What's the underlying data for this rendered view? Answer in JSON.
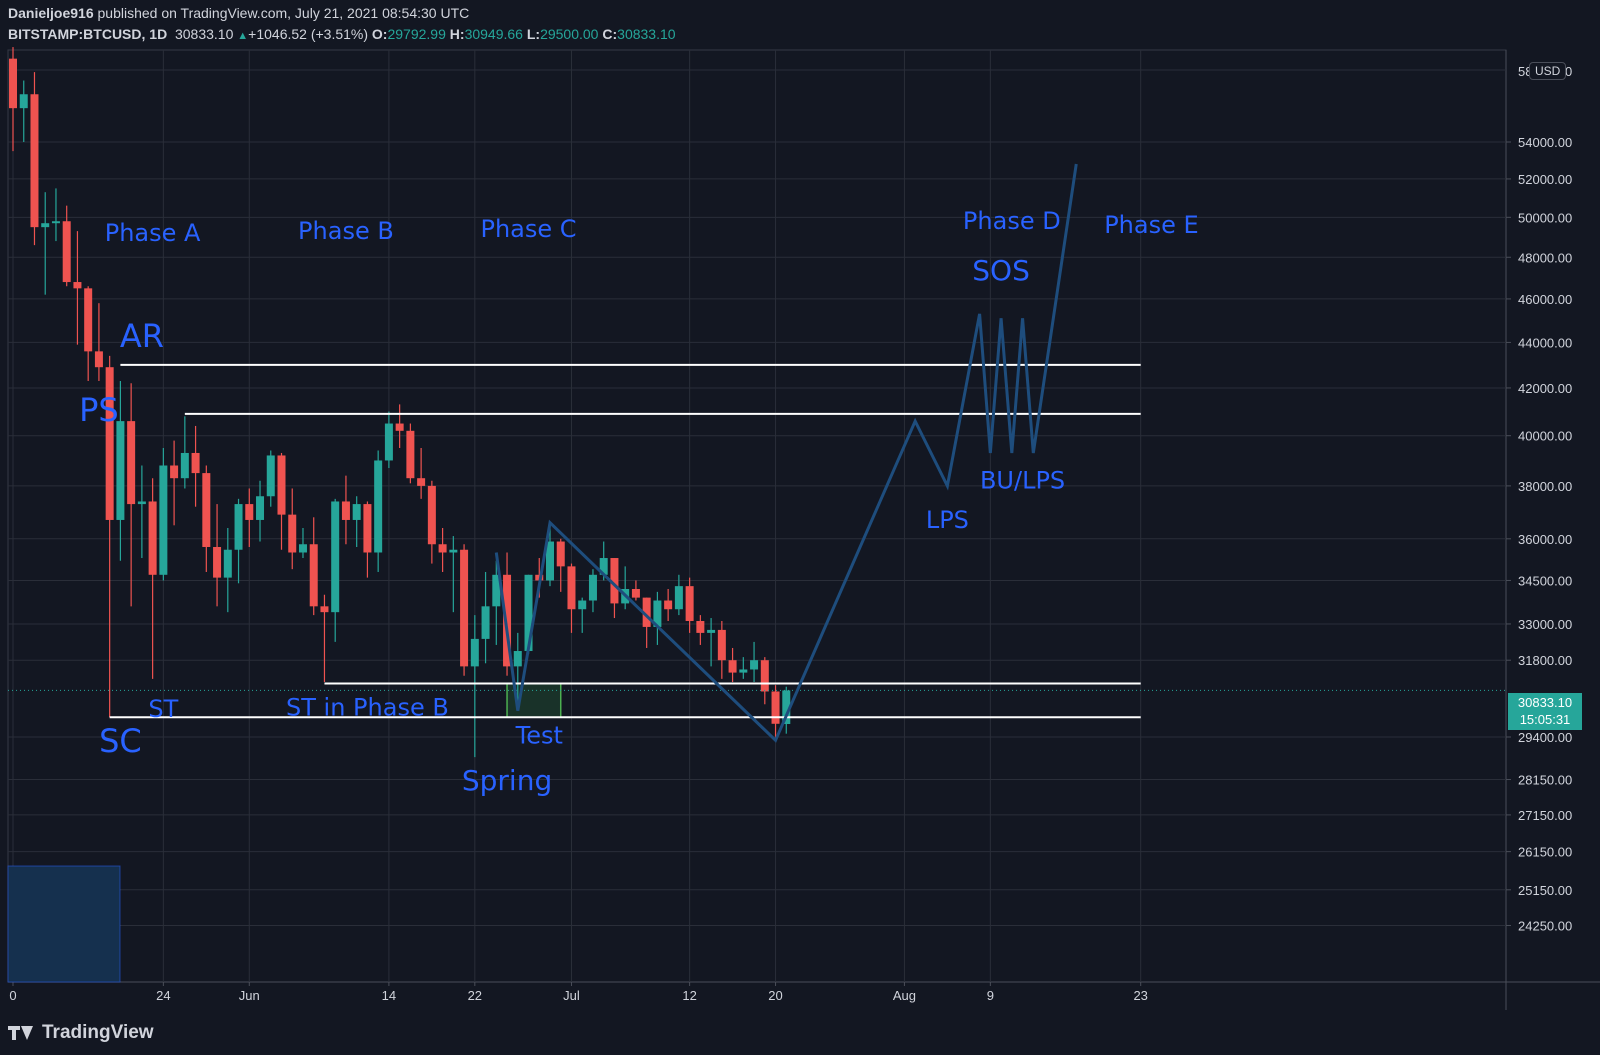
{
  "header": {
    "author": "Danieljoe916",
    "published": " published on TradingView.com, July 21, 2021 08:54:30 UTC",
    "symbol": "BITSTAMP:BTCUSD, 1D",
    "last": "30833.10",
    "change": "+1046.52 (+3.51%)",
    "o_label": "O:",
    "o_val": "29792.99",
    "h_label": "H:",
    "h_val": "30949.66",
    "l_label": "L:",
    "l_val": "29500.00",
    "c_label": "C:",
    "c_val": "30833.10"
  },
  "currency_badge": "USD",
  "last_price_tag": {
    "price": "30833.10",
    "countdown": "15:05:31"
  },
  "footer": {
    "brand": "TradingView"
  },
  "colors": {
    "up": "#26a69a",
    "down": "#ef5350",
    "annotation": "#2962ff",
    "path": "#1e4d7d",
    "level": "#ffffff"
  },
  "chart_data": {
    "type": "candlestick",
    "y_scale": "log",
    "y_ticks": [
      "54000.00",
      "52000.00",
      "50000.00",
      "48000.00",
      "46000.00",
      "44000.00",
      "42000.00",
      "40000.00",
      "38000.00",
      "36000.00",
      "34500.00",
      "33000.00",
      "31800.00",
      "29400.00",
      "28150.00",
      "27150.00",
      "26150.00",
      "25150.00",
      "24250.00"
    ],
    "y_tick_values": [
      54000,
      52000,
      50000,
      48000,
      46000,
      44000,
      42000,
      40000,
      38000,
      36000,
      34500,
      33000,
      31800,
      29400,
      28150,
      27150,
      26150,
      25150,
      24250
    ],
    "y_partial_tick": "58000.00",
    "x_ticks": [
      {
        "label": "0",
        "date": "2021-05-10"
      },
      {
        "label": "24",
        "date": "2021-05-24"
      },
      {
        "label": "Jun",
        "date": "2021-06-01"
      },
      {
        "label": "14",
        "date": "2021-06-14"
      },
      {
        "label": "22",
        "date": "2021-06-22"
      },
      {
        "label": "Jul",
        "date": "2021-07-01"
      },
      {
        "label": "12",
        "date": "2021-07-12"
      },
      {
        "label": "20",
        "date": "2021-07-20"
      },
      {
        "label": "Aug",
        "date": "2021-08-01"
      },
      {
        "label": "9",
        "date": "2021-08-09"
      },
      {
        "label": "23",
        "date": "2021-08-23"
      }
    ],
    "candles": [
      {
        "date": "2021-05-10",
        "o": 58800,
        "h": 59500,
        "l": 53500,
        "c": 55900
      },
      {
        "date": "2021-05-11",
        "o": 55900,
        "h": 57500,
        "l": 54000,
        "c": 56700
      },
      {
        "date": "2021-05-12",
        "o": 56700,
        "h": 58000,
        "l": 48600,
        "c": 49500
      },
      {
        "date": "2021-05-13",
        "o": 49500,
        "h": 51300,
        "l": 46200,
        "c": 49700
      },
      {
        "date": "2021-05-14",
        "o": 49700,
        "h": 51500,
        "l": 48800,
        "c": 49800
      },
      {
        "date": "2021-05-15",
        "o": 49800,
        "h": 50600,
        "l": 46600,
        "c": 46800
      },
      {
        "date": "2021-05-16",
        "o": 46800,
        "h": 49300,
        "l": 43900,
        "c": 46500
      },
      {
        "date": "2021-05-17",
        "o": 46500,
        "h": 46600,
        "l": 42300,
        "c": 43600
      },
      {
        "date": "2021-05-18",
        "o": 43600,
        "h": 45800,
        "l": 42300,
        "c": 42900
      },
      {
        "date": "2021-05-19",
        "o": 42900,
        "h": 43400,
        "l": 30000,
        "c": 36700
      },
      {
        "date": "2021-05-20",
        "o": 36700,
        "h": 42300,
        "l": 35200,
        "c": 40600
      },
      {
        "date": "2021-05-21",
        "o": 40600,
        "h": 42200,
        "l": 33600,
        "c": 37300
      },
      {
        "date": "2021-05-22",
        "o": 37300,
        "h": 38800,
        "l": 35300,
        "c": 37400
      },
      {
        "date": "2021-05-23",
        "o": 37400,
        "h": 38300,
        "l": 31200,
        "c": 34700
      },
      {
        "date": "2021-05-24",
        "o": 34700,
        "h": 39500,
        "l": 34500,
        "c": 38800
      },
      {
        "date": "2021-05-25",
        "o": 38800,
        "h": 39800,
        "l": 36500,
        "c": 38300
      },
      {
        "date": "2021-05-26",
        "o": 38300,
        "h": 40800,
        "l": 37900,
        "c": 39300
      },
      {
        "date": "2021-05-27",
        "o": 39300,
        "h": 40400,
        "l": 37200,
        "c": 38500
      },
      {
        "date": "2021-05-28",
        "o": 38500,
        "h": 38800,
        "l": 34800,
        "c": 35700
      },
      {
        "date": "2021-05-29",
        "o": 35700,
        "h": 37300,
        "l": 33600,
        "c": 34600
      },
      {
        "date": "2021-05-30",
        "o": 34600,
        "h": 36400,
        "l": 33400,
        "c": 35600
      },
      {
        "date": "2021-05-31",
        "o": 35600,
        "h": 37500,
        "l": 34400,
        "c": 37300
      },
      {
        "date": "2021-06-01",
        "o": 37300,
        "h": 37900,
        "l": 35700,
        "c": 36700
      },
      {
        "date": "2021-06-02",
        "o": 36700,
        "h": 38200,
        "l": 35900,
        "c": 37600
      },
      {
        "date": "2021-06-03",
        "o": 37600,
        "h": 39400,
        "l": 37200,
        "c": 39200
      },
      {
        "date": "2021-06-04",
        "o": 39200,
        "h": 39300,
        "l": 35600,
        "c": 36900
      },
      {
        "date": "2021-06-05",
        "o": 36900,
        "h": 37900,
        "l": 34900,
        "c": 35500
      },
      {
        "date": "2021-06-06",
        "o": 35500,
        "h": 36400,
        "l": 35300,
        "c": 35800
      },
      {
        "date": "2021-06-07",
        "o": 35800,
        "h": 36800,
        "l": 33300,
        "c": 33600
      },
      {
        "date": "2021-06-08",
        "o": 33600,
        "h": 34000,
        "l": 31100,
        "c": 33400
      },
      {
        "date": "2021-06-09",
        "o": 33400,
        "h": 37500,
        "l": 32400,
        "c": 37400
      },
      {
        "date": "2021-06-10",
        "o": 37400,
        "h": 38400,
        "l": 35800,
        "c": 36700
      },
      {
        "date": "2021-06-11",
        "o": 36700,
        "h": 37600,
        "l": 35700,
        "c": 37300
      },
      {
        "date": "2021-06-12",
        "o": 37300,
        "h": 37400,
        "l": 34600,
        "c": 35500
      },
      {
        "date": "2021-06-13",
        "o": 35500,
        "h": 39400,
        "l": 34800,
        "c": 39000
      },
      {
        "date": "2021-06-14",
        "o": 39000,
        "h": 41000,
        "l": 38700,
        "c": 40500
      },
      {
        "date": "2021-06-15",
        "o": 40500,
        "h": 41300,
        "l": 39500,
        "c": 40200
      },
      {
        "date": "2021-06-16",
        "o": 40200,
        "h": 40500,
        "l": 38100,
        "c": 38300
      },
      {
        "date": "2021-06-17",
        "o": 38300,
        "h": 39500,
        "l": 37500,
        "c": 38000
      },
      {
        "date": "2021-06-18",
        "o": 38000,
        "h": 38200,
        "l": 35100,
        "c": 35800
      },
      {
        "date": "2021-06-19",
        "o": 35800,
        "h": 36400,
        "l": 34800,
        "c": 35500
      },
      {
        "date": "2021-06-20",
        "o": 35500,
        "h": 36100,
        "l": 33400,
        "c": 35600
      },
      {
        "date": "2021-06-21",
        "o": 35600,
        "h": 35800,
        "l": 31300,
        "c": 31600
      },
      {
        "date": "2021-06-22",
        "o": 31600,
        "h": 33300,
        "l": 28800,
        "c": 32500
      },
      {
        "date": "2021-06-23",
        "o": 32500,
        "h": 34800,
        "l": 31700,
        "c": 33600
      },
      {
        "date": "2021-06-24",
        "o": 33600,
        "h": 35200,
        "l": 32300,
        "c": 34700
      },
      {
        "date": "2021-06-25",
        "o": 34700,
        "h": 35500,
        "l": 31300,
        "c": 31600
      },
      {
        "date": "2021-06-26",
        "o": 31600,
        "h": 32700,
        "l": 30200,
        "c": 32100
      },
      {
        "date": "2021-06-27",
        "o": 32100,
        "h": 34700,
        "l": 32000,
        "c": 34700
      },
      {
        "date": "2021-06-28",
        "o": 34700,
        "h": 35300,
        "l": 33900,
        "c": 34500
      },
      {
        "date": "2021-06-29",
        "o": 34500,
        "h": 36600,
        "l": 34300,
        "c": 35900
      },
      {
        "date": "2021-06-30",
        "o": 35900,
        "h": 36000,
        "l": 34100,
        "c": 35000
      },
      {
        "date": "2021-07-01",
        "o": 35000,
        "h": 35100,
        "l": 32700,
        "c": 33500
      },
      {
        "date": "2021-07-02",
        "o": 33500,
        "h": 33900,
        "l": 32700,
        "c": 33800
      },
      {
        "date": "2021-07-03",
        "o": 33800,
        "h": 34900,
        "l": 33400,
        "c": 34700
      },
      {
        "date": "2021-07-04",
        "o": 34700,
        "h": 35900,
        "l": 34500,
        "c": 35300
      },
      {
        "date": "2021-07-05",
        "o": 35300,
        "h": 35300,
        "l": 33200,
        "c": 33700
      },
      {
        "date": "2021-07-06",
        "o": 33700,
        "h": 35000,
        "l": 33500,
        "c": 34200
      },
      {
        "date": "2021-07-07",
        "o": 34200,
        "h": 34500,
        "l": 33800,
        "c": 33900
      },
      {
        "date": "2021-07-08",
        "o": 33900,
        "h": 33900,
        "l": 32200,
        "c": 32900
      },
      {
        "date": "2021-07-09",
        "o": 32900,
        "h": 34100,
        "l": 32300,
        "c": 33800
      },
      {
        "date": "2021-07-10",
        "o": 33800,
        "h": 34200,
        "l": 33100,
        "c": 33500
      },
      {
        "date": "2021-07-11",
        "o": 33500,
        "h": 34700,
        "l": 33300,
        "c": 34300
      },
      {
        "date": "2021-07-12",
        "o": 34300,
        "h": 34600,
        "l": 32700,
        "c": 33100
      },
      {
        "date": "2021-07-13",
        "o": 33100,
        "h": 33300,
        "l": 32300,
        "c": 32700
      },
      {
        "date": "2021-07-14",
        "o": 32700,
        "h": 33200,
        "l": 31600,
        "c": 32800
      },
      {
        "date": "2021-07-15",
        "o": 32800,
        "h": 33100,
        "l": 31200,
        "c": 31800
      },
      {
        "date": "2021-07-16",
        "o": 31800,
        "h": 32200,
        "l": 31100,
        "c": 31400
      },
      {
        "date": "2021-07-17",
        "o": 31400,
        "h": 31900,
        "l": 31200,
        "c": 31500
      },
      {
        "date": "2021-07-18",
        "o": 31500,
        "h": 32400,
        "l": 31100,
        "c": 31800
      },
      {
        "date": "2021-07-19",
        "o": 31800,
        "h": 31900,
        "l": 30400,
        "c": 30800
      },
      {
        "date": "2021-07-20",
        "o": 30800,
        "h": 31000,
        "l": 29300,
        "c": 29800
      },
      {
        "date": "2021-07-21",
        "o": 29793,
        "h": 30950,
        "l": 29500,
        "c": 30833
      }
    ],
    "levels": [
      {
        "from": "2021-05-20",
        "to": "2021-08-23",
        "price": 43000
      },
      {
        "from": "2021-05-26",
        "to": "2021-08-23",
        "price": 40900
      },
      {
        "from": "2021-06-08",
        "to": "2021-08-23",
        "price": 31050
      },
      {
        "from": "2021-05-19",
        "to": "2021-08-23",
        "price": 30000
      }
    ],
    "projection_path": [
      {
        "date": "2021-06-24",
        "price": 35500
      },
      {
        "date": "2021-06-26",
        "price": 30200
      },
      {
        "date": "2021-06-29",
        "price": 36600
      },
      {
        "date": "2021-07-20",
        "price": 29300
      },
      {
        "date": "2021-08-02",
        "price": 40600
      },
      {
        "date": "2021-08-05",
        "price": 38000
      },
      {
        "date": "2021-08-08",
        "price": 45300
      },
      {
        "date": "2021-08-09",
        "price": 39300
      },
      {
        "date": "2021-08-10",
        "price": 45100
      },
      {
        "date": "2021-08-11",
        "price": 39300
      },
      {
        "date": "2021-08-12",
        "price": 45100
      },
      {
        "date": "2021-08-13",
        "price": 39300
      },
      {
        "date": "2021-08-17",
        "price": 52800
      }
    ],
    "spring_box": {
      "from": "2021-06-25",
      "to": "2021-06-30",
      "top": 31050,
      "bottom": 30000
    },
    "annotations": [
      {
        "text": "Phase A",
        "date": "2021-05-23",
        "price": 48800,
        "size": 24
      },
      {
        "text": "Phase B",
        "date": "2021-06-10",
        "price": 48900,
        "size": 24
      },
      {
        "text": "Phase C",
        "date": "2021-06-27",
        "price": 49000,
        "size": 24
      },
      {
        "text": "Phase D",
        "date": "2021-08-11",
        "price": 49400,
        "size": 24
      },
      {
        "text": "Phase E",
        "date": "2021-08-24",
        "price": 49200,
        "size": 24
      },
      {
        "text": "SOS",
        "date": "2021-08-10",
        "price": 46900,
        "size": 28
      },
      {
        "text": "AR",
        "date": "2021-05-22",
        "price": 43800,
        "size": 32
      },
      {
        "text": "PS",
        "date": "2021-05-18",
        "price": 40600,
        "size": 32
      },
      {
        "text": "LPS",
        "date": "2021-08-05",
        "price": 36400,
        "size": 24
      },
      {
        "text": "BU/LPS",
        "date": "2021-08-12",
        "price": 37900,
        "size": 24
      },
      {
        "text": "ST",
        "date": "2021-05-24",
        "price": 30000,
        "size": 24
      },
      {
        "text": "ST in Phase B",
        "date": "2021-06-12",
        "price": 30050,
        "size": 24
      },
      {
        "text": "SC",
        "date": "2021-05-20",
        "price": 28950,
        "size": 32
      },
      {
        "text": "Test",
        "date": "2021-06-28",
        "price": 29200,
        "size": 24
      },
      {
        "text": "Spring",
        "date": "2021-06-25",
        "price": 27850,
        "size": 28
      }
    ]
  }
}
